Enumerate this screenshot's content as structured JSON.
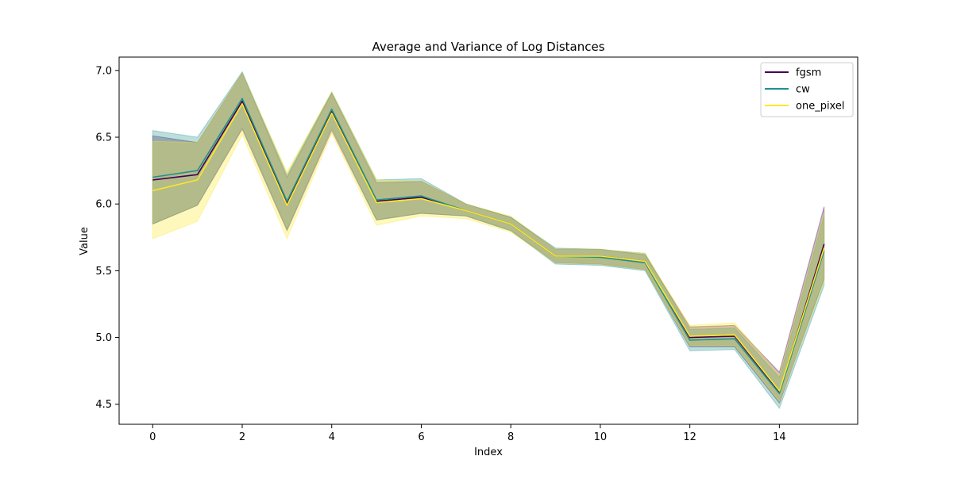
{
  "chart_data": {
    "type": "line",
    "title": "Average and Variance of Log Distances",
    "xlabel": "Index",
    "ylabel": "Value",
    "xlim": [
      -0.75,
      15.75
    ],
    "ylim": [
      4.35,
      7.1
    ],
    "x": [
      0,
      1,
      2,
      3,
      4,
      5,
      6,
      7,
      8,
      9,
      10,
      11,
      12,
      13,
      14,
      15
    ],
    "xticks": [
      "0",
      "2",
      "4",
      "6",
      "8",
      "10",
      "12",
      "14"
    ],
    "xtick_values": [
      0,
      2,
      4,
      6,
      8,
      10,
      12,
      14
    ],
    "yticks": [
      "4.5",
      "5.0",
      "5.5",
      "6.0",
      "6.5",
      "7.0"
    ],
    "ytick_values": [
      4.5,
      5.0,
      5.5,
      6.0,
      6.5,
      7.0
    ],
    "grid": false,
    "legend_position": "top-right",
    "series": [
      {
        "name": "fgsm",
        "color": "#440154",
        "mean": [
          6.18,
          6.22,
          6.77,
          6.0,
          6.69,
          6.02,
          6.05,
          5.95,
          5.85,
          5.61,
          5.61,
          5.57,
          5.0,
          5.01,
          4.59,
          5.7
        ],
        "lower": [
          5.85,
          5.99,
          6.56,
          5.8,
          6.55,
          5.88,
          5.93,
          5.91,
          5.8,
          5.56,
          5.55,
          5.51,
          4.93,
          4.93,
          4.51,
          5.44
        ],
        "upper": [
          6.51,
          6.46,
          6.98,
          6.2,
          6.83,
          6.16,
          6.17,
          6.0,
          5.9,
          5.66,
          5.66,
          5.62,
          5.08,
          5.09,
          4.74,
          5.98
        ]
      },
      {
        "name": "cw",
        "color": "#21918c",
        "mean": [
          6.2,
          6.25,
          6.79,
          6.02,
          6.71,
          6.03,
          6.06,
          5.95,
          5.85,
          5.61,
          5.6,
          5.56,
          4.98,
          4.99,
          4.58,
          5.65
        ],
        "lower": [
          5.85,
          5.99,
          6.57,
          5.81,
          6.57,
          5.88,
          5.93,
          5.91,
          5.8,
          5.55,
          5.54,
          5.5,
          4.9,
          4.91,
          4.47,
          5.39
        ],
        "upper": [
          6.55,
          6.5,
          6.99,
          6.22,
          6.84,
          6.18,
          6.19,
          6.0,
          5.9,
          5.67,
          5.66,
          5.63,
          5.06,
          5.07,
          4.7,
          5.92
        ]
      },
      {
        "name": "one_pixel",
        "color": "#fde725",
        "mean": [
          6.1,
          6.18,
          6.75,
          5.99,
          6.68,
          6.01,
          6.04,
          5.95,
          5.85,
          5.61,
          5.61,
          5.57,
          5.01,
          5.02,
          4.6,
          5.67
        ],
        "lower": [
          5.74,
          5.87,
          6.52,
          5.74,
          6.53,
          5.84,
          5.91,
          5.89,
          5.79,
          5.56,
          5.55,
          5.51,
          4.94,
          4.94,
          4.52,
          5.42
        ],
        "upper": [
          6.47,
          6.46,
          6.98,
          6.24,
          6.84,
          6.18,
          6.17,
          6.0,
          5.91,
          5.66,
          5.66,
          5.63,
          5.09,
          5.11,
          4.72,
          5.93
        ]
      }
    ]
  }
}
